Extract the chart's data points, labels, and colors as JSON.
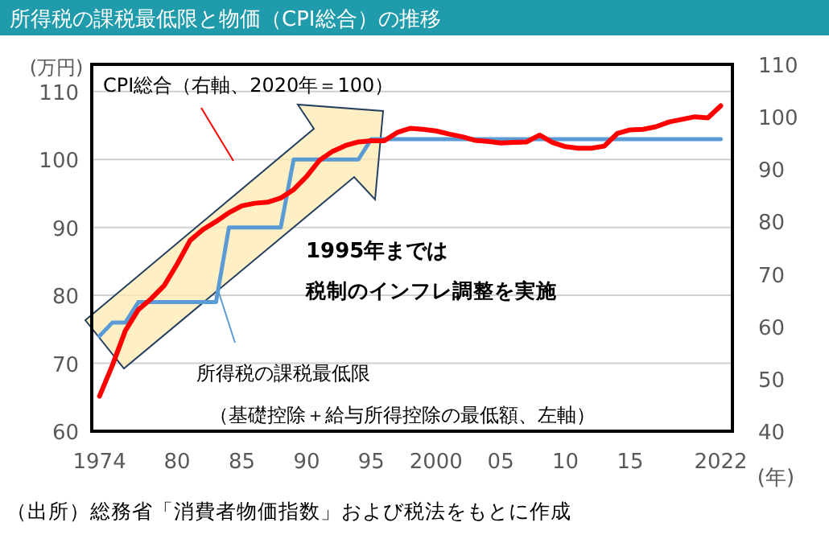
{
  "chart_data": {
    "type": "line",
    "title": "所得税の課税最低限と物価（CPI総合）の推移",
    "xlabel": "(年)",
    "ylabel": "(万円)",
    "x": [
      1974,
      1975,
      1976,
      1977,
      1978,
      1979,
      1980,
      1981,
      1982,
      1983,
      1984,
      1985,
      1986,
      1987,
      1988,
      1989,
      1990,
      1991,
      1992,
      1993,
      1994,
      1995,
      1996,
      1997,
      1998,
      1999,
      2000,
      2001,
      2002,
      2003,
      2004,
      2005,
      2006,
      2007,
      2008,
      2009,
      2010,
      2011,
      2012,
      2013,
      2014,
      2015,
      2016,
      2017,
      2018,
      2019,
      2020,
      2021,
      2022
    ],
    "xlim": [
      1973.4,
      2022.9
    ],
    "xticks": [
      1974,
      {
        "value": 1980,
        "label": "80"
      },
      {
        "value": 1985,
        "label": "85"
      },
      {
        "value": 1990,
        "label": "90"
      },
      {
        "value": 1995,
        "label": "95"
      },
      2000,
      {
        "value": 2005,
        "label": "05"
      },
      {
        "value": 2010,
        "label": "10"
      },
      {
        "value": 2015,
        "label": "15"
      },
      2022
    ],
    "ylim": [
      60,
      114
    ],
    "yticks": [
      60,
      70,
      80,
      90,
      100,
      110
    ],
    "y2lim": [
      40,
      110
    ],
    "y2ticks": [
      40,
      50,
      60,
      70,
      80,
      90,
      100,
      110
    ],
    "grid": "y",
    "series": [
      {
        "name": "所得税の課税最低限",
        "color": "#5b9bd5",
        "values": [
          74,
          76,
          76,
          79,
          79,
          79,
          79,
          79,
          79,
          79,
          90,
          90,
          90,
          90,
          90,
          100,
          100,
          100,
          100,
          100,
          100,
          103,
          103,
          103,
          103,
          103,
          103,
          103,
          103,
          103,
          103,
          103,
          103,
          103,
          103,
          103,
          103,
          103,
          103,
          103,
          103,
          103,
          103,
          103,
          103,
          103,
          103,
          103,
          103
        ]
      },
      {
        "name": "CPI総合（右軸、2020年＝100）",
        "color": "#ff0000",
        "axis": "y2",
        "values": [
          46.7,
          52.6,
          59.2,
          63.2,
          65.3,
          67.8,
          71.9,
          76.4,
          78.5,
          80.0,
          81.7,
          83.0,
          83.5,
          83.7,
          84.5,
          86.1,
          88.6,
          91.7,
          93.4,
          94.5,
          95.2,
          95.4,
          95.4,
          97.0,
          97.8,
          97.6,
          97.3,
          96.7,
          96.2,
          95.5,
          95.3,
          95.0,
          95.1,
          95.2,
          96.5,
          95.1,
          94.3,
          94.0,
          94.0,
          94.4,
          96.8,
          97.5,
          97.6,
          98.1,
          99.0,
          99.5,
          100,
          99.8,
          102.1
        ]
      }
    ],
    "annotations": [
      "1995年までは",
      "税制のインフレ調整を実施",
      "（基礎控除＋給与所得控除の最低額、左軸）",
      "（出所）総務省「消費者物価指数」および税法をもとに作成"
    ]
  }
}
